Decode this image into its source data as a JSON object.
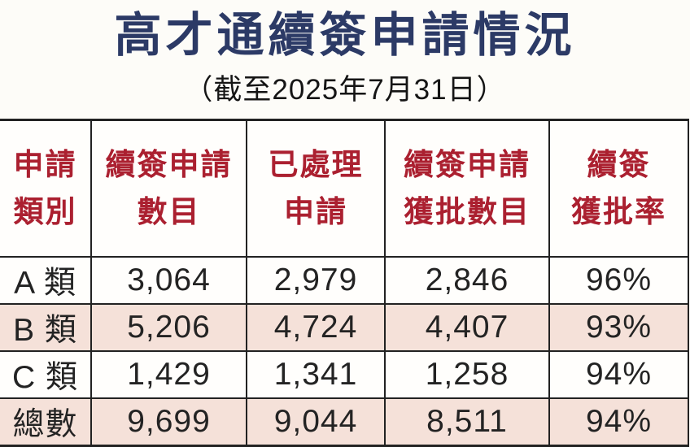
{
  "title": "高才通續簽申請情況",
  "subtitle": "（截至2025年7月31日）",
  "table": {
    "columns": [
      {
        "line1": "申請",
        "line2": "類別"
      },
      {
        "line1": "續簽申請",
        "line2": "數目"
      },
      {
        "line1": "已處理",
        "line2": "申請"
      },
      {
        "line1": "續簽申請",
        "line2": "獲批數目"
      },
      {
        "line1": "續簽",
        "line2": "獲批率"
      }
    ],
    "rows": [
      {
        "category": "A 類",
        "applications": "3,064",
        "processed": "2,979",
        "approved": "2,846",
        "rate": "96%"
      },
      {
        "category": "B 類",
        "applications": "5,206",
        "processed": "4,724",
        "approved": "4,407",
        "rate": "93%"
      },
      {
        "category": "C 類",
        "applications": "1,429",
        "processed": "1,341",
        "approved": "1,258",
        "rate": "94%"
      },
      {
        "category": "總數",
        "applications": "9,699",
        "processed": "9,044",
        "approved": "8,511",
        "rate": "94%"
      }
    ]
  },
  "chart_data": {
    "type": "table",
    "title": "高才通續簽申請情況",
    "subtitle": "（截至2025年7月31日）",
    "columns": [
      "申請類別",
      "續簽申請數目",
      "已處理申請",
      "續簽申請獲批數目",
      "續簽獲批率"
    ],
    "rows": [
      [
        "A類",
        3064,
        2979,
        2846,
        "96%"
      ],
      [
        "B類",
        5206,
        4724,
        4407,
        "93%"
      ],
      [
        "C類",
        1429,
        1341,
        1258,
        "94%"
      ],
      [
        "總數",
        9699,
        9044,
        8511,
        "94%"
      ]
    ]
  },
  "colors": {
    "title_blue": "#2c3a66",
    "header_red": "#ab2030",
    "row_pink": "#f5e1d9",
    "border": "#222222",
    "background": "#fdfcf8"
  }
}
